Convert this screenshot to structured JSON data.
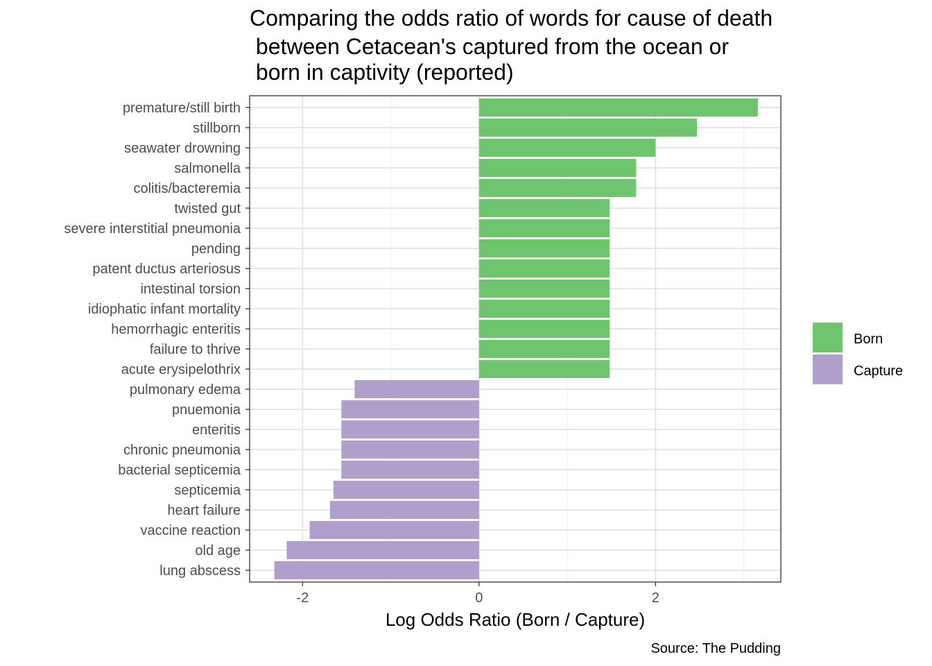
{
  "chart_data": {
    "type": "bar",
    "orientation": "horizontal",
    "title_lines": [
      "Comparing the odds ratio of words for cause of death",
      " between Cetacean's captured from the ocean or",
      " born in captivity (reported)"
    ],
    "xlabel": "Log Odds Ratio (Born / Capture)",
    "ylabel": "",
    "caption": "Source: The Pudding",
    "xlim": [
      -2.6,
      3.42
    ],
    "x_ticks": [
      -2,
      0,
      2
    ],
    "x_tick_labels": [
      "-2",
      "0",
      "2"
    ],
    "grid": true,
    "legend_position": "right",
    "categories": [
      "premature/still birth",
      "stillborn",
      "seawater drowning",
      "salmonella",
      "colitis/bacteremia",
      "twisted gut",
      "severe interstitial pneumonia",
      "pending",
      "patent ductus arteriosus",
      "intestinal torsion",
      "idiophatic infant mortality",
      "hemorrhagic enteritis",
      "failure to thrive",
      "acute erysipelothrix",
      "pulmonary edema",
      "pnuemonia",
      "enteritis",
      "chronic pneumonia",
      "bacterial septicemia",
      "septicemia",
      "heart failure",
      "vaccine reaction",
      "old age",
      "lung abscess"
    ],
    "values": [
      3.16,
      2.47,
      2.0,
      1.78,
      1.78,
      1.48,
      1.48,
      1.48,
      1.48,
      1.48,
      1.48,
      1.48,
      1.48,
      1.48,
      -1.41,
      -1.56,
      -1.56,
      -1.56,
      -1.56,
      -1.65,
      -1.69,
      -1.92,
      -2.18,
      -2.32
    ],
    "groups": [
      "Born",
      "Born",
      "Born",
      "Born",
      "Born",
      "Born",
      "Born",
      "Born",
      "Born",
      "Born",
      "Born",
      "Born",
      "Born",
      "Born",
      "Capture",
      "Capture",
      "Capture",
      "Capture",
      "Capture",
      "Capture",
      "Capture",
      "Capture",
      "Capture",
      "Capture"
    ],
    "legend": [
      {
        "name": "Born",
        "color": "#6fc46e"
      },
      {
        "name": "Capture",
        "color": "#b09ecc"
      }
    ]
  },
  "colors": {
    "panel_border": "#333333",
    "grid_major": "#e5e5e5",
    "grid_minor": "#f0f0f0",
    "tick_text": "#4d4d4d"
  }
}
